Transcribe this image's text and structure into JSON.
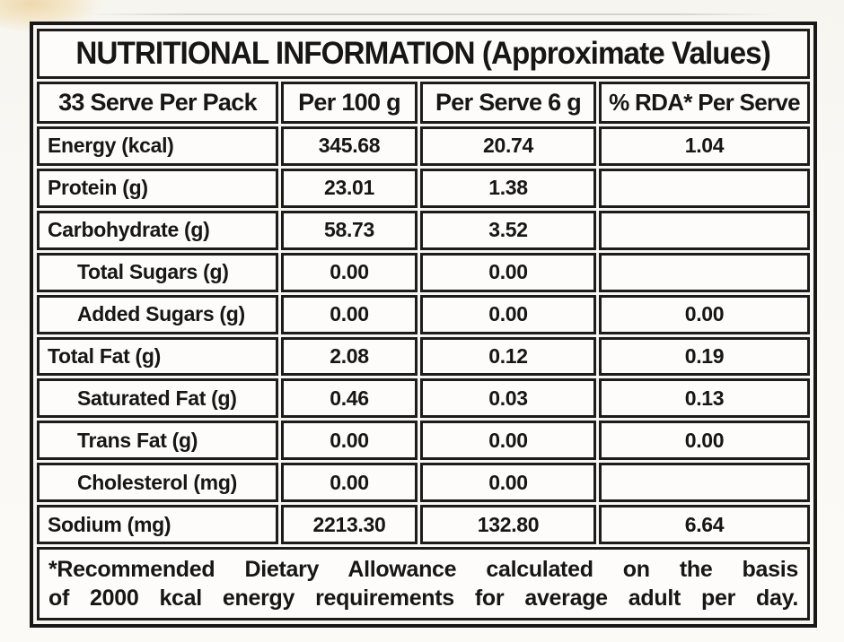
{
  "table": {
    "title": "NUTRITIONAL INFORMATION (Approximate Values)",
    "header": {
      "serves": "33 Serve Per Pack",
      "per_100g": "Per 100 g",
      "per_serve": "Per Serve 6 g",
      "rda": "% RDA* Per Serve"
    },
    "rows": [
      {
        "label": "Energy (kcal)",
        "indent": false,
        "per_100g": "345.68",
        "per_serve": "20.74",
        "rda": "1.04"
      },
      {
        "label": "Protein (g)",
        "indent": false,
        "per_100g": "23.01",
        "per_serve": "1.38",
        "rda": ""
      },
      {
        "label": "Carbohydrate (g)",
        "indent": false,
        "per_100g": "58.73",
        "per_serve": "3.52",
        "rda": ""
      },
      {
        "label": "Total Sugars (g)",
        "indent": true,
        "per_100g": "0.00",
        "per_serve": "0.00",
        "rda": ""
      },
      {
        "label": "Added Sugars (g)",
        "indent": true,
        "per_100g": "0.00",
        "per_serve": "0.00",
        "rda": "0.00"
      },
      {
        "label": "Total Fat (g)",
        "indent": false,
        "per_100g": "2.08",
        "per_serve": "0.12",
        "rda": "0.19"
      },
      {
        "label": "Saturated Fat (g)",
        "indent": true,
        "per_100g": "0.46",
        "per_serve": "0.03",
        "rda": "0.13"
      },
      {
        "label": "Trans Fat (g)",
        "indent": true,
        "per_100g": "0.00",
        "per_serve": "0.00",
        "rda": "0.00"
      },
      {
        "label": "Cholesterol (mg)",
        "indent": true,
        "per_100g": "0.00",
        "per_serve": "0.00",
        "rda": ""
      },
      {
        "label": "Sodium (mg)",
        "indent": false,
        "per_100g": "2213.30",
        "per_serve": "132.80",
        "rda": "6.64"
      }
    ],
    "footnote": {
      "line1": "*Recommended Dietary Allowance calculated on the basis",
      "line2": "of 2000 kcal energy requirements for average adult per day."
    },
    "colors": {
      "border": "#181818",
      "text": "#161616",
      "cell_background": "#fdfcfa",
      "page_background": "#f8f6f1",
      "corner_accent": "#eed9ae"
    }
  }
}
